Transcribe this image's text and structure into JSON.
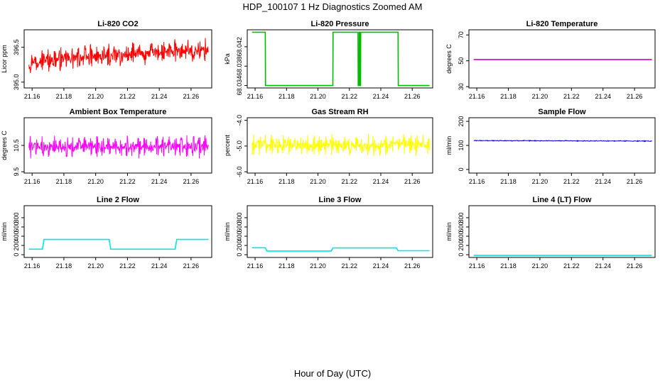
{
  "title": "HDP_100107  1 Hz Diagnostics Zoomed AM",
  "xlabel": "Hour of Day (UTC)",
  "chart_data": [
    {
      "type": "line",
      "title": "Li-820 CO2",
      "ylabel": "Licor ppm",
      "color": "#ff0000",
      "xlim": [
        21.155,
        21.273
      ],
      "ylim": [
        394.75,
        397.25
      ],
      "xticks": [
        "21.16",
        "21.18",
        "21.20",
        "21.22",
        "21.24",
        "21.26"
      ],
      "yticks": [
        "395.0",
        "396.5"
      ],
      "series": [
        {
          "name": "co2",
          "pattern": "noise",
          "x": [
            21.158,
            21.271
          ],
          "y": [
            395.9,
            396.4
          ],
          "amplitude": 0.55
        }
      ]
    },
    {
      "type": "line",
      "title": "Li-820 Pressure",
      "ylabel": "kPa",
      "color": "#00bb00",
      "xlim": [
        21.155,
        21.273
      ],
      "ylim": [
        68.0335,
        68.0455
      ],
      "xticks": [
        "21.16",
        "21.18",
        "21.20",
        "21.22",
        "21.24",
        "21.26"
      ],
      "yticks": [
        "68.034",
        "68.038",
        "68.042"
      ],
      "series": [
        {
          "name": "pressure",
          "pattern": "step",
          "x": [
            21.158,
            21.1665,
            21.1666,
            21.2095,
            21.2096,
            21.2255,
            21.2256,
            21.2262,
            21.2263,
            21.2268,
            21.2269,
            21.2271,
            21.2272,
            21.251,
            21.2511,
            21.271
          ],
          "y": [
            68.045,
            68.045,
            68.034,
            68.034,
            68.045,
            68.045,
            68.034,
            68.034,
            68.045,
            68.045,
            68.034,
            68.034,
            68.045,
            68.045,
            68.034,
            68.034
          ]
        }
      ]
    },
    {
      "type": "line",
      "title": "Li-820 Temperature",
      "ylabel": "degrees C",
      "color": "#cc00cc",
      "xlim": [
        21.155,
        21.273
      ],
      "ylim": [
        29,
        74
      ],
      "xticks": [
        "21.16",
        "21.18",
        "21.20",
        "21.22",
        "21.24",
        "21.26"
      ],
      "yticks": [
        "30",
        "50",
        "70"
      ],
      "series": [
        {
          "name": "temperature",
          "pattern": "flat",
          "x": [
            21.158,
            21.271
          ],
          "y": [
            51,
            51
          ]
        }
      ]
    },
    {
      "type": "line",
      "title": "Ambient Box Temperature",
      "ylabel": "degrees C",
      "color": "#ff00ff",
      "xlim": [
        21.155,
        21.273
      ],
      "ylim": [
        9.45,
        11.55
      ],
      "xticks": [
        "21.16",
        "21.18",
        "21.20",
        "21.22",
        "21.24",
        "21.26"
      ],
      "yticks": [
        "9.5",
        "10.5"
      ],
      "series": [
        {
          "name": "box_temp",
          "pattern": "noise",
          "x": [
            21.158,
            21.271
          ],
          "y": [
            10.45,
            10.45
          ],
          "amplitude": 0.45
        }
      ]
    },
    {
      "type": "line",
      "title": "Gas Stream RH",
      "ylabel": "percent",
      "color": "#ffff00",
      "xlim": [
        21.155,
        21.273
      ],
      "ylim": [
        -6.05,
        -3.9
      ],
      "xticks": [
        "21.16",
        "21.18",
        "21.20",
        "21.22",
        "21.24",
        "21.26"
      ],
      "yticks": [
        "-6.0",
        "-5.0",
        "-4.0"
      ],
      "series": [
        {
          "name": "rh",
          "pattern": "noise",
          "x": [
            21.158,
            21.271
          ],
          "y": [
            -4.95,
            -4.95
          ],
          "amplitude": 0.45
        }
      ]
    },
    {
      "type": "line",
      "title": "Sample Flow",
      "ylabel": "ml/min",
      "color": "#0000cc",
      "xlim": [
        21.155,
        21.273
      ],
      "ylim": [
        -15,
        215
      ],
      "xticks": [
        "21.16",
        "21.18",
        "21.20",
        "21.22",
        "21.24",
        "21.26"
      ],
      "yticks": [
        "0",
        "100",
        "200"
      ],
      "series": [
        {
          "name": "sample_flow",
          "pattern": "noise",
          "x": [
            21.158,
            21.271
          ],
          "y": [
            120,
            118
          ],
          "amplitude": 2
        }
      ]
    },
    {
      "type": "line",
      "title": "Line 2 Flow",
      "ylabel": "ml/min",
      "color": "#00e5e5",
      "xlim": [
        21.155,
        21.273
      ],
      "ylim": [
        -60,
        1060
      ],
      "xticks": [
        "21.16",
        "21.18",
        "21.20",
        "21.22",
        "21.24",
        "21.26"
      ],
      "yticks": [
        "0",
        "200",
        "400",
        "600",
        "800"
      ],
      "series": [
        {
          "name": "line2_flow",
          "pattern": "step",
          "x": [
            21.158,
            21.1665,
            21.1675,
            21.2085,
            21.2095,
            21.25,
            21.251,
            21.271
          ],
          "y": [
            120,
            120,
            330,
            330,
            120,
            120,
            330,
            330
          ]
        }
      ]
    },
    {
      "type": "line",
      "title": "Line 3 Flow",
      "ylabel": "ml/min",
      "color": "#00e5e5",
      "xlim": [
        21.155,
        21.273
      ],
      "ylim": [
        -60,
        1060
      ],
      "xticks": [
        "21.16",
        "21.18",
        "21.20",
        "21.22",
        "21.24",
        "21.26"
      ],
      "yticks": [
        "0",
        "200",
        "400",
        "600",
        "800"
      ],
      "series": [
        {
          "name": "line3_flow",
          "pattern": "step",
          "x": [
            21.158,
            21.1665,
            21.1675,
            21.2085,
            21.2095,
            21.25,
            21.251,
            21.271
          ],
          "y": [
            150,
            150,
            80,
            80,
            145,
            145,
            85,
            85
          ]
        }
      ]
    },
    {
      "type": "line",
      "title": "Line 4 (LT) Flow",
      "ylabel": "ml/min",
      "color": "#00e5e5",
      "xlim": [
        21.155,
        21.273
      ],
      "ylim": [
        -60,
        1060
      ],
      "xticks": [
        "21.16",
        "21.18",
        "21.20",
        "21.22",
        "21.24",
        "21.26"
      ],
      "yticks": [
        "0",
        "200",
        "400",
        "600",
        "800"
      ],
      "series": [
        {
          "name": "line4_flow",
          "pattern": "flat",
          "x": [
            21.158,
            21.271
          ],
          "y": [
            -15,
            -15
          ]
        }
      ]
    }
  ]
}
